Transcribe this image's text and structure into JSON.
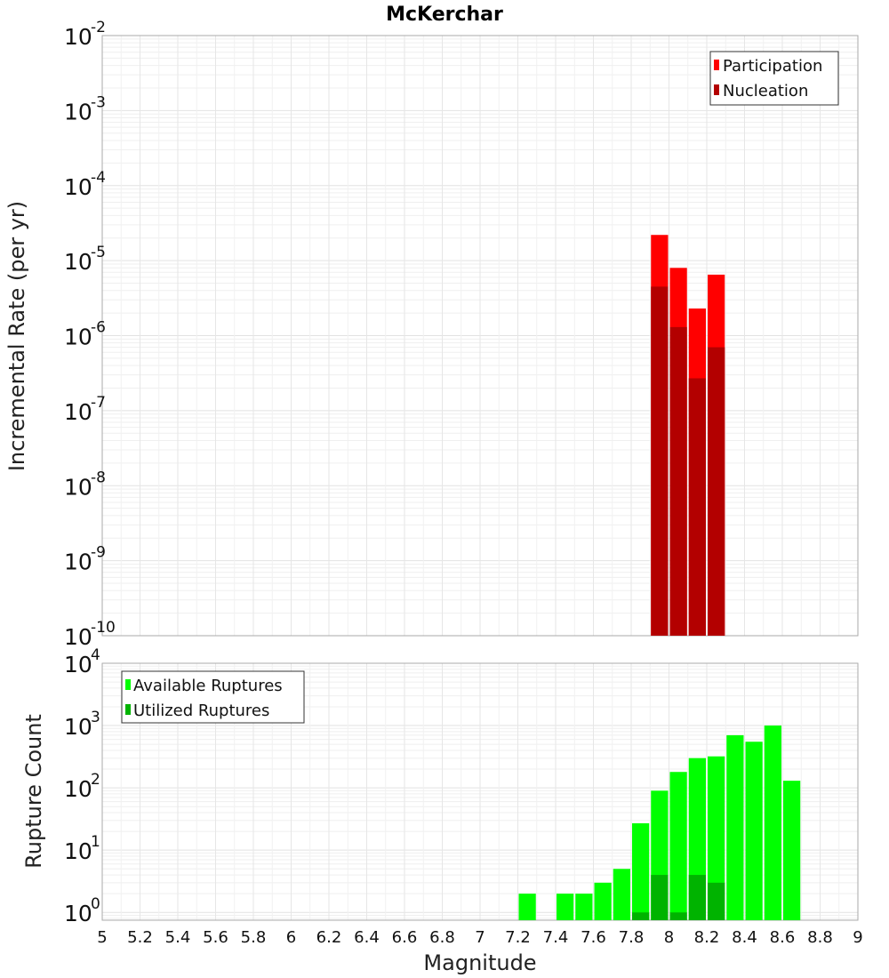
{
  "chart_data": [
    {
      "type": "bar",
      "title": "McKerchar",
      "xlabel": "",
      "ylabel": "Incremental Rate (per yr)",
      "yscale": "log",
      "xlim": [
        5,
        9
      ],
      "ylim": [
        1e-10,
        0.01
      ],
      "y_tick_exponents": [
        -10,
        -9,
        -8,
        -7,
        -6,
        -5,
        -4,
        -3,
        -2
      ],
      "bin_width": 0.1,
      "legend_position": "top-right",
      "series": [
        {
          "name": "Participation",
          "color": "#ff0000",
          "x": [
            7.95,
            8.05,
            8.15,
            8.25
          ],
          "values": [
            2.2e-05,
            8e-06,
            2.3e-06,
            6.5e-06
          ]
        },
        {
          "name": "Nucleation",
          "color": "#b30000",
          "x": [
            7.95,
            8.05,
            8.15,
            8.25
          ],
          "values": [
            4.5e-06,
            1.3e-06,
            2.7e-07,
            7e-07
          ]
        }
      ],
      "grid": true
    },
    {
      "type": "bar",
      "xlabel": "Magnitude",
      "ylabel": "Rupture Count",
      "yscale": "log",
      "xlim": [
        5,
        9
      ],
      "ylim": [
        0.75,
        10000
      ],
      "y_tick_exponents": [
        0,
        1,
        2,
        3,
        4
      ],
      "x_ticks": [
        "5",
        "5.2",
        "5.4",
        "5.6",
        "5.8",
        "6",
        "6.2",
        "6.4",
        "6.6",
        "6.8",
        "7",
        "7.2",
        "7.4",
        "7.6",
        "7.8",
        "8",
        "8.2",
        "8.4",
        "8.6",
        "8.8",
        "9"
      ],
      "bin_width": 0.1,
      "legend_position": "top-left",
      "series": [
        {
          "name": "Available Ruptures",
          "color": "#00ff00",
          "x": [
            7.25,
            7.45,
            7.55,
            7.65,
            7.75,
            7.85,
            7.95,
            8.05,
            8.15,
            8.25,
            8.35,
            8.45,
            8.55,
            8.65
          ],
          "values": [
            2,
            2,
            2,
            3,
            5,
            27,
            90,
            180,
            300,
            320,
            700,
            550,
            1000,
            130
          ]
        },
        {
          "name": "Utilized Ruptures",
          "color": "#00b300",
          "x": [
            7.85,
            7.95,
            8.05,
            8.15,
            8.25
          ],
          "values": [
            1,
            4,
            1,
            4,
            3
          ]
        }
      ],
      "grid": true
    }
  ]
}
